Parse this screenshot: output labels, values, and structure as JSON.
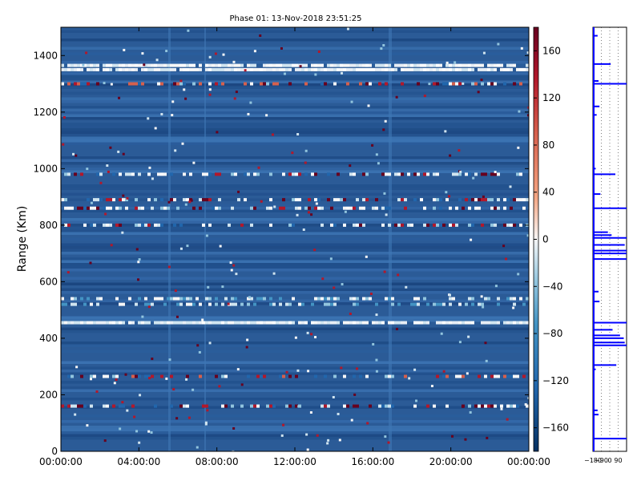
{
  "figure": {
    "title": "Phase 01: 13-Nov-2018 23:51:25"
  },
  "chart_data": {
    "type": "heatmap",
    "title": "Phase 01: 13-Nov-2018 23:51:25",
    "xlabel": "",
    "ylabel": "Range (Km)",
    "x_ticks": [
      "00:00:00",
      "04:00:00",
      "08:00:00",
      "12:00:00",
      "16:00:00",
      "20:00:00",
      "00:00:00"
    ],
    "x_range_hours": [
      0,
      24
    ],
    "y_ticks": [
      0,
      200,
      400,
      600,
      800,
      1000,
      1200,
      1400
    ],
    "ylim": [
      0,
      1500
    ],
    "colorbar": {
      "ticks": [
        160,
        120,
        80,
        40,
        0,
        -40,
        -80,
        -120,
        -160
      ],
      "range": [
        -180,
        180
      ],
      "colormap": "RdBu_r",
      "colors": {
        "low": "#053061",
        "mid_low": "#2166ac",
        "mid": "#f7f7f7",
        "high": "#67001f"
      }
    },
    "background_color": "#2b5b97",
    "bright_range_bands_km": [
      {
        "range_km": 1365,
        "intensity": "high"
      },
      {
        "range_km": 1350,
        "intensity": "high"
      },
      {
        "range_km": 1300,
        "intensity": "mixed-red"
      },
      {
        "range_km": 980,
        "intensity": "mixed"
      },
      {
        "range_km": 890,
        "intensity": "mixed"
      },
      {
        "range_km": 860,
        "intensity": "mixed"
      },
      {
        "range_km": 800,
        "intensity": "mixed"
      },
      {
        "range_km": 540,
        "intensity": "medium"
      },
      {
        "range_km": 520,
        "intensity": "medium"
      },
      {
        "range_km": 455,
        "intensity": "high"
      },
      {
        "range_km": 265,
        "intensity": "mixed-red"
      },
      {
        "range_km": 160,
        "intensity": "mixed"
      }
    ],
    "side_profile": {
      "x_ticks": [
        "-180",
        "-90",
        "0",
        "90"
      ],
      "xlim": [
        -180,
        180
      ],
      "ylim": [
        0,
        1500
      ],
      "line_color": "#0000ff",
      "spikes": [
        {
          "range_km": 45,
          "value": 180
        },
        {
          "range_km": 130,
          "value": -120
        },
        {
          "range_km": 145,
          "value": -130
        },
        {
          "range_km": 290,
          "value": -150
        },
        {
          "range_km": 305,
          "value": 70
        },
        {
          "range_km": 375,
          "value": 180
        },
        {
          "range_km": 385,
          "value": 160
        },
        {
          "range_km": 400,
          "value": 150
        },
        {
          "range_km": 410,
          "value": 110
        },
        {
          "range_km": 430,
          "value": 30
        },
        {
          "range_km": 455,
          "value": 180
        },
        {
          "range_km": 530,
          "value": -110
        },
        {
          "range_km": 565,
          "value": -120
        },
        {
          "range_km": 680,
          "value": 180
        },
        {
          "range_km": 700,
          "value": 180
        },
        {
          "range_km": 710,
          "value": 180
        },
        {
          "range_km": 730,
          "value": 160
        },
        {
          "range_km": 755,
          "value": 180
        },
        {
          "range_km": 765,
          "value": 20
        },
        {
          "range_km": 775,
          "value": -20
        },
        {
          "range_km": 860,
          "value": 180
        },
        {
          "range_km": 910,
          "value": -100
        },
        {
          "range_km": 980,
          "value": 60
        },
        {
          "range_km": 1000,
          "value": -150
        },
        {
          "range_km": 1190,
          "value": -140
        },
        {
          "range_km": 1220,
          "value": -110
        },
        {
          "range_km": 1300,
          "value": 180
        },
        {
          "range_km": 1310,
          "value": -120
        },
        {
          "range_km": 1370,
          "value": 10
        },
        {
          "range_km": 1470,
          "value": -130
        }
      ]
    }
  }
}
